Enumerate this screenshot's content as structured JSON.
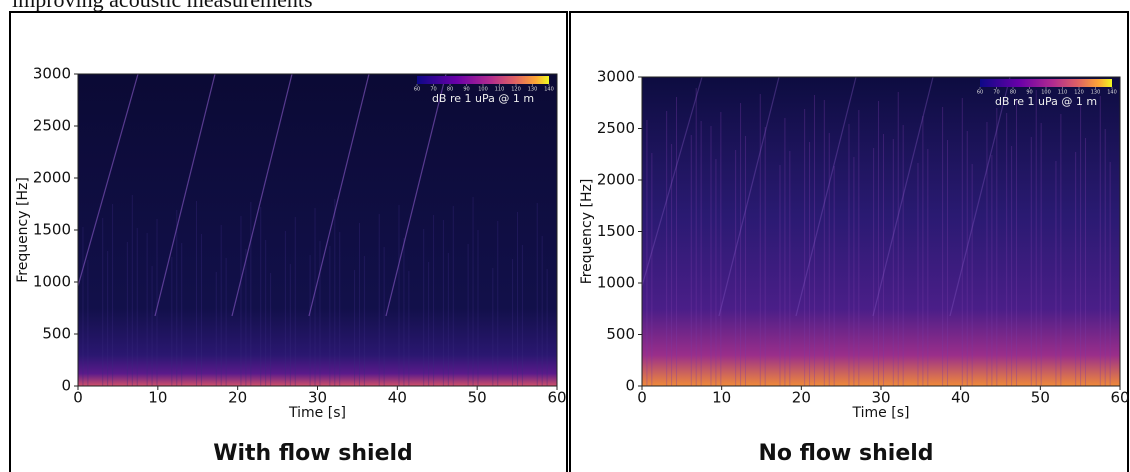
{
  "header_text": "improving acoustic measurements",
  "chart_data": [
    {
      "type": "spectrogram",
      "xlabel": "Time [s]",
      "ylabel": "Frequency [Hz]",
      "xlim": [
        0,
        60
      ],
      "ylim": [
        0,
        3000
      ],
      "xticks": [
        0,
        10,
        20,
        30,
        40,
        50,
        60
      ],
      "yticks": [
        0,
        500,
        1000,
        1500,
        2000,
        2500,
        3000
      ],
      "colorbar_label": "dB re 1 uPa @ 1 m",
      "clim": [
        60,
        140
      ],
      "cticks": [
        60,
        70,
        80,
        90,
        100,
        110,
        120,
        130,
        140
      ],
      "caption": "With flow shield"
    },
    {
      "type": "spectrogram",
      "xlabel": "Time [s]",
      "ylabel": "Frequency [Hz]",
      "xlim": [
        0,
        60
      ],
      "ylim": [
        0,
        3000
      ],
      "xticks": [
        0,
        10,
        20,
        30,
        40,
        50,
        60
      ],
      "yticks": [
        0,
        500,
        1000,
        1500,
        2000,
        2500,
        3000
      ],
      "colorbar_label": "dB re 1 uPa @ 1 m",
      "clim": [
        60,
        140
      ],
      "cticks": [
        60,
        70,
        80,
        90,
        100,
        110,
        120,
        130,
        140
      ],
      "caption": "No flow shield"
    }
  ]
}
